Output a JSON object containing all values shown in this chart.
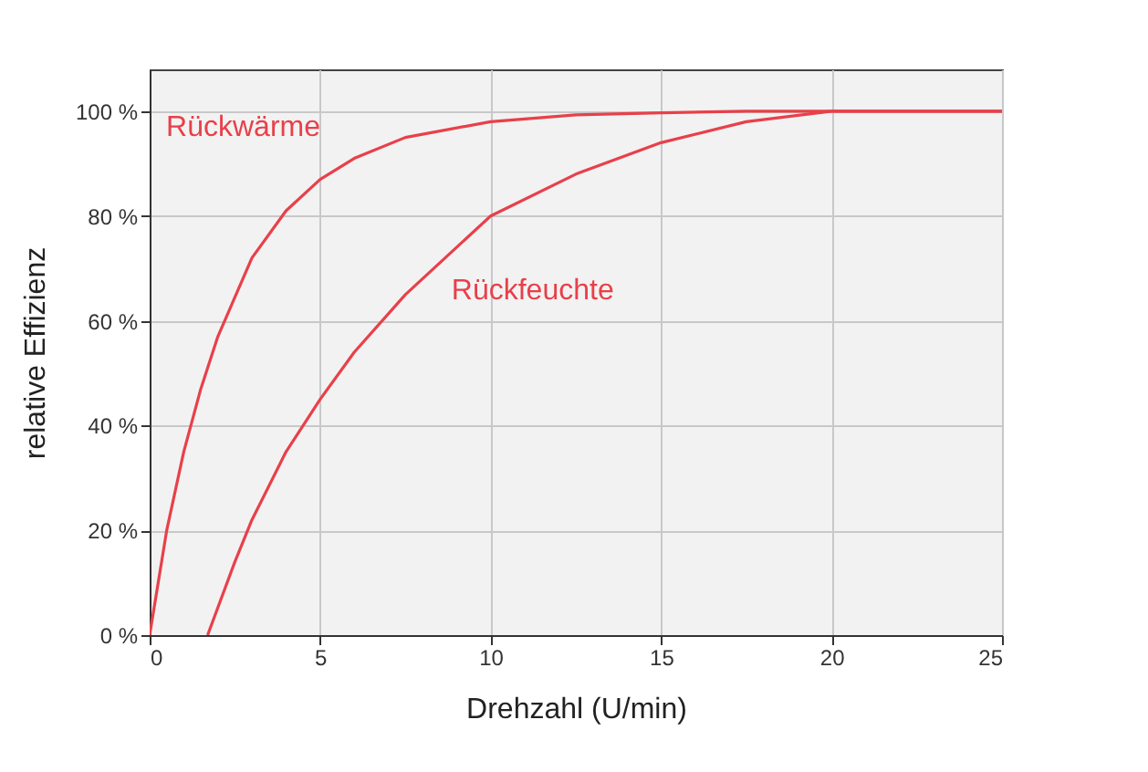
{
  "chart_data": {
    "type": "line",
    "xlabel": "Drehzahl (U/min)",
    "ylabel": "relative Effizienz",
    "series": [
      {
        "name": "Rückwärme",
        "color": "#e8404a",
        "x": [
          0,
          0.5,
          1,
          1.5,
          2,
          3,
          4,
          5,
          6,
          7.5,
          10,
          12.5,
          15,
          17.5,
          20,
          25
        ],
        "values": [
          0,
          20,
          35,
          47,
          57,
          72,
          81,
          87,
          91,
          95,
          98,
          99.3,
          99.7,
          100,
          100,
          100
        ]
      },
      {
        "name": "Rückfeuchte",
        "color": "#e8404a",
        "x": [
          1.7,
          2.5,
          3,
          4,
          5,
          6,
          7.5,
          10,
          12.5,
          15,
          17.5,
          20,
          25
        ],
        "values": [
          0,
          14,
          22,
          35,
          45,
          54,
          65,
          80,
          88,
          94,
          98,
          100,
          100
        ]
      }
    ],
    "xlim": [
      0,
      25
    ],
    "xticks": [
      0,
      5,
      10,
      15,
      20,
      25
    ],
    "ylim": [
      0,
      108
    ],
    "yticks": [
      {
        "value": 0,
        "label": "0 %"
      },
      {
        "value": 20,
        "label": "20 %"
      },
      {
        "value": 40,
        "label": "40 %"
      },
      {
        "value": 60,
        "label": "60 %"
      },
      {
        "value": 80,
        "label": "80 %"
      },
      {
        "value": 100,
        "label": "100 %"
      }
    ],
    "grid": true,
    "legend": false,
    "marker": "none",
    "line_style": "solid"
  }
}
